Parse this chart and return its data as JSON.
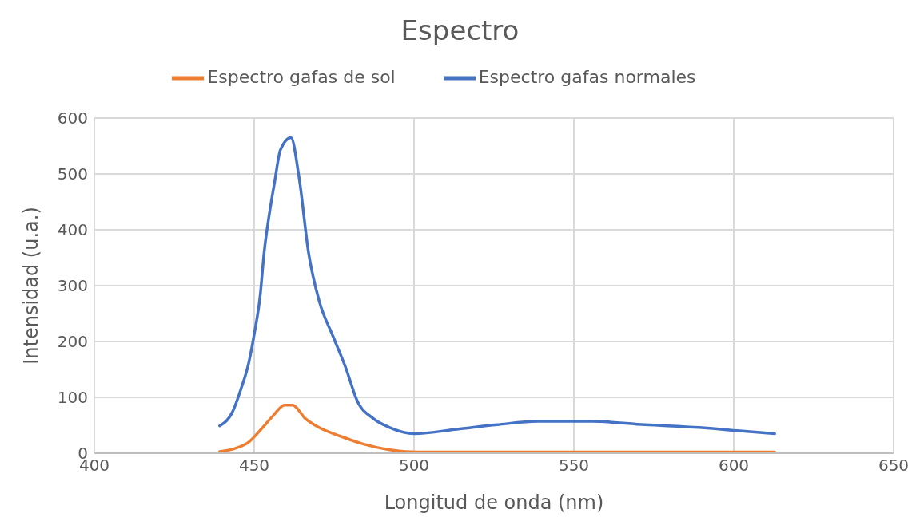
{
  "chart_data": {
    "type": "line",
    "title": "Espectro",
    "xlabel": "Longitud de onda (nm)",
    "ylabel": "Intensidad (u.a.)",
    "xlim": [
      400,
      650
    ],
    "xticks": [
      400,
      450,
      500,
      550,
      600,
      650
    ],
    "ylim": [
      0,
      600
    ],
    "yticks": [
      0,
      100,
      200,
      300,
      400,
      500,
      600
    ],
    "grid": true,
    "legend": "top",
    "marker": "none",
    "line_style": "solid",
    "series": [
      {
        "name": "Espectro gafas normales",
        "color": "#4472c4",
        "x": [
          439.2,
          443.3,
          445.8,
          448.3,
          450.1,
          451.9,
          453.1,
          454.7,
          456.4,
          458.2,
          461.5,
          464,
          467,
          470.3,
          474.6,
          478.7,
          482.2,
          487.3,
          492.4,
          500.2,
          513.4,
          526,
          538.7,
          555.6,
          572.3,
          589.3,
          601.9,
          612.8
        ],
        "values": [
          49,
          75,
          114,
          162,
          216,
          284,
          359,
          427,
          486,
          543,
          565,
          495,
          359,
          273,
          210,
          152,
          94,
          62,
          46,
          35,
          43,
          51,
          57,
          57,
          51,
          46,
          40,
          35
        ]
      },
      {
        "name": "Espectro gafas de sol",
        "color": "#ed7d31",
        "x": [
          439.2,
          447.6,
          451.9,
          455.9,
          459.5,
          462,
          466,
          470.3,
          477.2,
          483.8,
          492.4,
          500.7,
          550,
          612.8
        ],
        "values": [
          3,
          17,
          41,
          67,
          86,
          86,
          62,
          46,
          30,
          17,
          6,
          2,
          2,
          2
        ]
      }
    ]
  }
}
